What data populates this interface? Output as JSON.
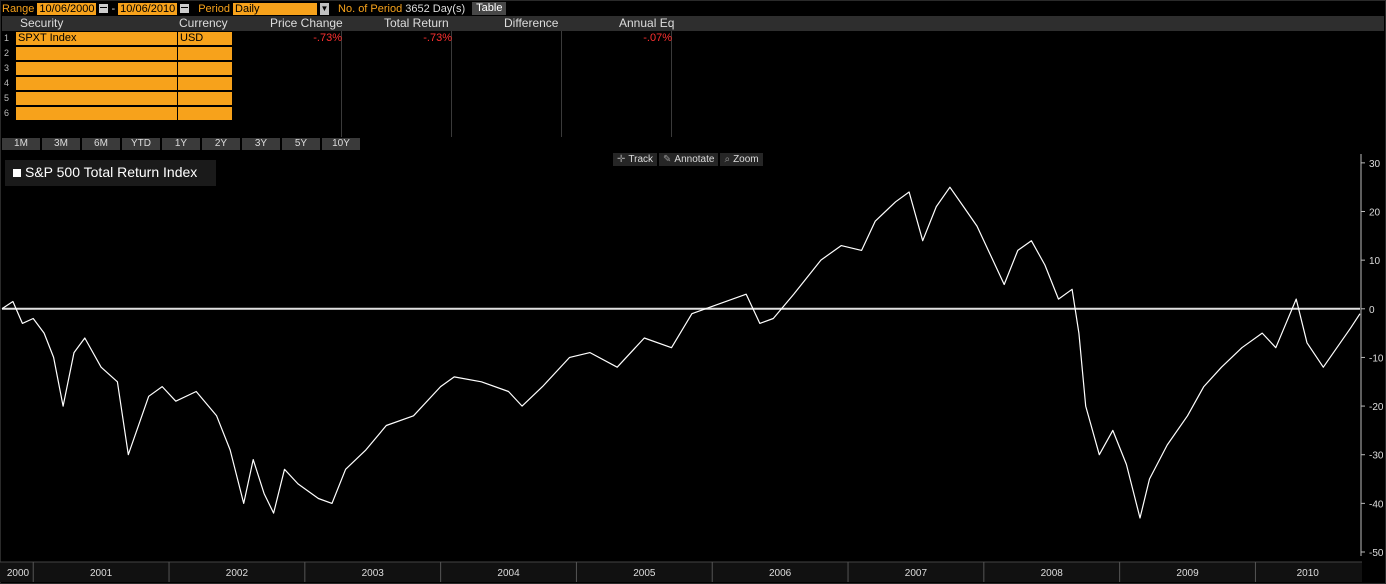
{
  "topbar": {
    "range_label": "Range",
    "start_date": "10/06/2000",
    "dash": "-",
    "end_date": "10/06/2010",
    "period_label": "Period",
    "period_value": "Daily",
    "num_periods_label": "No. of Period",
    "num_periods_value": "3652 Day(s)",
    "table_button": "Table"
  },
  "table": {
    "headers": [
      "Security",
      "Currency",
      "Price Change",
      "Total Return",
      "Difference",
      "Annual Eq"
    ],
    "rows": [
      {
        "num": "1",
        "security": "SPXT Index",
        "currency": "USD",
        "price_change": "-.73%",
        "total_return": "-.73%",
        "difference": "",
        "annual_eq": "-.07%"
      },
      {
        "num": "2",
        "security": "",
        "currency": "",
        "price_change": "",
        "total_return": "",
        "difference": "",
        "annual_eq": ""
      },
      {
        "num": "3",
        "security": "",
        "currency": "",
        "price_change": "",
        "total_return": "",
        "difference": "",
        "annual_eq": ""
      },
      {
        "num": "4",
        "security": "",
        "currency": "",
        "price_change": "",
        "total_return": "",
        "difference": "",
        "annual_eq": ""
      },
      {
        "num": "5",
        "security": "",
        "currency": "",
        "price_change": "",
        "total_return": "",
        "difference": "",
        "annual_eq": ""
      },
      {
        "num": "6",
        "security": "",
        "currency": "",
        "price_change": "",
        "total_return": "",
        "difference": "",
        "annual_eq": ""
      }
    ]
  },
  "range_buttons": [
    "1M",
    "3M",
    "6M",
    "YTD",
    "1Y",
    "2Y",
    "3Y",
    "5Y",
    "10Y"
  ],
  "toolbar": {
    "track": "Track",
    "annotate": "Annotate",
    "zoom": "Zoom"
  },
  "colors": {
    "accent": "#f7a21b",
    "negative": "#ff3030",
    "line": "#ffffff",
    "background": "#000000"
  },
  "chart_data": {
    "type": "line",
    "title": "S&P 500 Total Return Index",
    "x_ticks": [
      "2000",
      "2001",
      "2002",
      "2003",
      "2004",
      "2005",
      "2006",
      "2007",
      "2008",
      "2009",
      "2010"
    ],
    "y_ticks": [
      30,
      20,
      10,
      0,
      -10,
      -20,
      -30,
      -40,
      -50
    ],
    "ylim": [
      -50,
      31
    ],
    "xlim": [
      2000.77,
      2010.77
    ],
    "reference_line": 0,
    "series": [
      {
        "values": [
          [
            2000.77,
            0
          ],
          [
            2000.85,
            1.5
          ],
          [
            2000.92,
            -3
          ],
          [
            2001.0,
            -2
          ],
          [
            2001.08,
            -5
          ],
          [
            2001.15,
            -10
          ],
          [
            2001.22,
            -20
          ],
          [
            2001.3,
            -9
          ],
          [
            2001.38,
            -6
          ],
          [
            2001.5,
            -12
          ],
          [
            2001.62,
            -15
          ],
          [
            2001.7,
            -30
          ],
          [
            2001.85,
            -18
          ],
          [
            2001.95,
            -16
          ],
          [
            2002.05,
            -19
          ],
          [
            2002.2,
            -17
          ],
          [
            2002.35,
            -22
          ],
          [
            2002.45,
            -29
          ],
          [
            2002.55,
            -40
          ],
          [
            2002.62,
            -31
          ],
          [
            2002.7,
            -38
          ],
          [
            2002.77,
            -42
          ],
          [
            2002.85,
            -33
          ],
          [
            2002.95,
            -36
          ],
          [
            2003.1,
            -39
          ],
          [
            2003.2,
            -40
          ],
          [
            2003.3,
            -33
          ],
          [
            2003.45,
            -29
          ],
          [
            2003.6,
            -24
          ],
          [
            2003.8,
            -22
          ],
          [
            2004.0,
            -16
          ],
          [
            2004.1,
            -14
          ],
          [
            2004.3,
            -15
          ],
          [
            2004.5,
            -17
          ],
          [
            2004.6,
            -20
          ],
          [
            2004.75,
            -16
          ],
          [
            2004.95,
            -10
          ],
          [
            2005.1,
            -9
          ],
          [
            2005.3,
            -12
          ],
          [
            2005.5,
            -6
          ],
          [
            2005.7,
            -8
          ],
          [
            2005.85,
            -1
          ],
          [
            2006.05,
            1
          ],
          [
            2006.15,
            2
          ],
          [
            2006.25,
            3
          ],
          [
            2006.35,
            -3
          ],
          [
            2006.45,
            -2
          ],
          [
            2006.6,
            3
          ],
          [
            2006.8,
            10
          ],
          [
            2006.95,
            13
          ],
          [
            2007.1,
            12
          ],
          [
            2007.2,
            18
          ],
          [
            2007.35,
            22
          ],
          [
            2007.45,
            24
          ],
          [
            2007.55,
            14
          ],
          [
            2007.65,
            21
          ],
          [
            2007.75,
            25
          ],
          [
            2007.85,
            21
          ],
          [
            2007.95,
            17
          ],
          [
            2008.05,
            11
          ],
          [
            2008.15,
            5
          ],
          [
            2008.25,
            12
          ],
          [
            2008.35,
            14
          ],
          [
            2008.45,
            9
          ],
          [
            2008.55,
            2
          ],
          [
            2008.65,
            4
          ],
          [
            2008.7,
            -5
          ],
          [
            2008.75,
            -20
          ],
          [
            2008.85,
            -30
          ],
          [
            2008.95,
            -25
          ],
          [
            2009.05,
            -32
          ],
          [
            2009.15,
            -43
          ],
          [
            2009.22,
            -35
          ],
          [
            2009.35,
            -28
          ],
          [
            2009.5,
            -22
          ],
          [
            2009.62,
            -16
          ],
          [
            2009.75,
            -12
          ],
          [
            2009.9,
            -8
          ],
          [
            2010.05,
            -5
          ],
          [
            2010.15,
            -8
          ],
          [
            2010.3,
            2
          ],
          [
            2010.38,
            -7
          ],
          [
            2010.5,
            -12
          ],
          [
            2010.6,
            -8
          ],
          [
            2010.7,
            -4
          ],
          [
            2010.77,
            -1
          ]
        ]
      }
    ],
    "legend": "top-left"
  }
}
